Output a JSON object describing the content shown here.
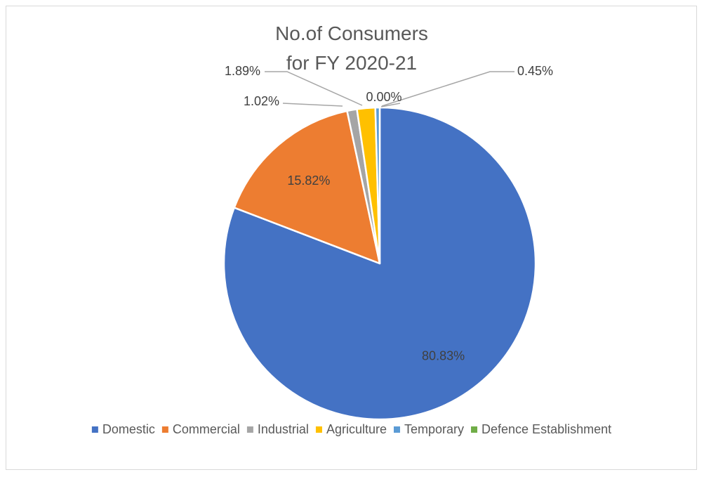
{
  "chart_data": {
    "type": "pie",
    "title": [
      "No.of Consumers",
      "for FY 2020-21"
    ],
    "slices": [
      {
        "name": "Domestic",
        "value": 80.83,
        "label": "80.83%",
        "color": "#4472c4"
      },
      {
        "name": "Commercial",
        "value": 15.82,
        "label": "15.82%",
        "color": "#ed7d31"
      },
      {
        "name": "Industrial",
        "value": 1.02,
        "label": "1.02%",
        "color": "#a5a5a5"
      },
      {
        "name": "Agriculture",
        "value": 1.89,
        "label": "1.89%",
        "color": "#ffc000"
      },
      {
        "name": "Temporary",
        "value": 0.45,
        "label": "0.45%",
        "color": "#5b9bd5"
      },
      {
        "name": "Defence Establishment",
        "value": 0.0,
        "label": "0.00%",
        "color": "#70ad47"
      }
    ],
    "legend_position": "bottom"
  }
}
